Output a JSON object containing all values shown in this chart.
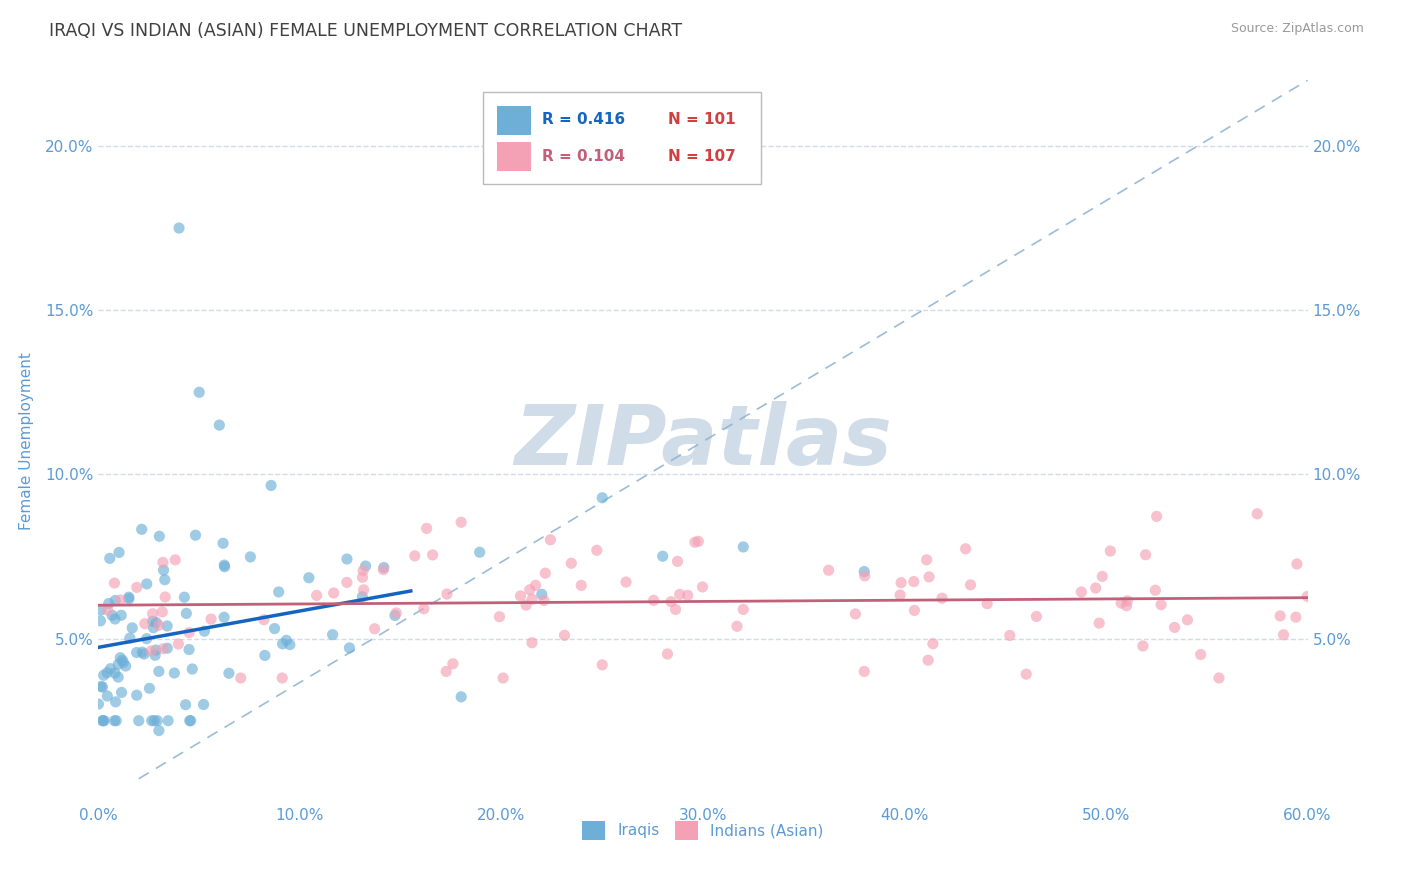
{
  "title": "IRAQI VS INDIAN (ASIAN) FEMALE UNEMPLOYMENT CORRELATION CHART",
  "source": "Source: ZipAtlas.com",
  "ylabel": "Female Unemployment",
  "xlim": [
    0.0,
    0.6
  ],
  "ylim": [
    0.0,
    0.22
  ],
  "xtick_labels": [
    "0.0%",
    "10.0%",
    "20.0%",
    "30.0%",
    "40.0%",
    "50.0%",
    "60.0%"
  ],
  "xtick_vals": [
    0.0,
    0.1,
    0.2,
    0.3,
    0.4,
    0.5,
    0.6
  ],
  "ytick_labels": [
    "5.0%",
    "10.0%",
    "15.0%",
    "20.0%"
  ],
  "ytick_vals": [
    0.05,
    0.1,
    0.15,
    0.2
  ],
  "iraqis_R": 0.416,
  "iraqis_N": 101,
  "indians_R": 0.104,
  "indians_N": 107,
  "iraqis_color": "#6dafd7",
  "indians_color": "#f4a0b5",
  "iraqis_line_color": "#1565C0",
  "indians_line_color": "#c2607a",
  "diagonal_color": "#8ab0d0",
  "background_color": "#ffffff",
  "watermark_color": "#d0dde8",
  "title_color": "#404040",
  "tick_color": "#5b9bd5",
  "grid_color": "#d0dce8",
  "legend_R_blue": "#1565C0",
  "legend_R_pink": "#c2607a",
  "legend_N_red": "#d04040"
}
